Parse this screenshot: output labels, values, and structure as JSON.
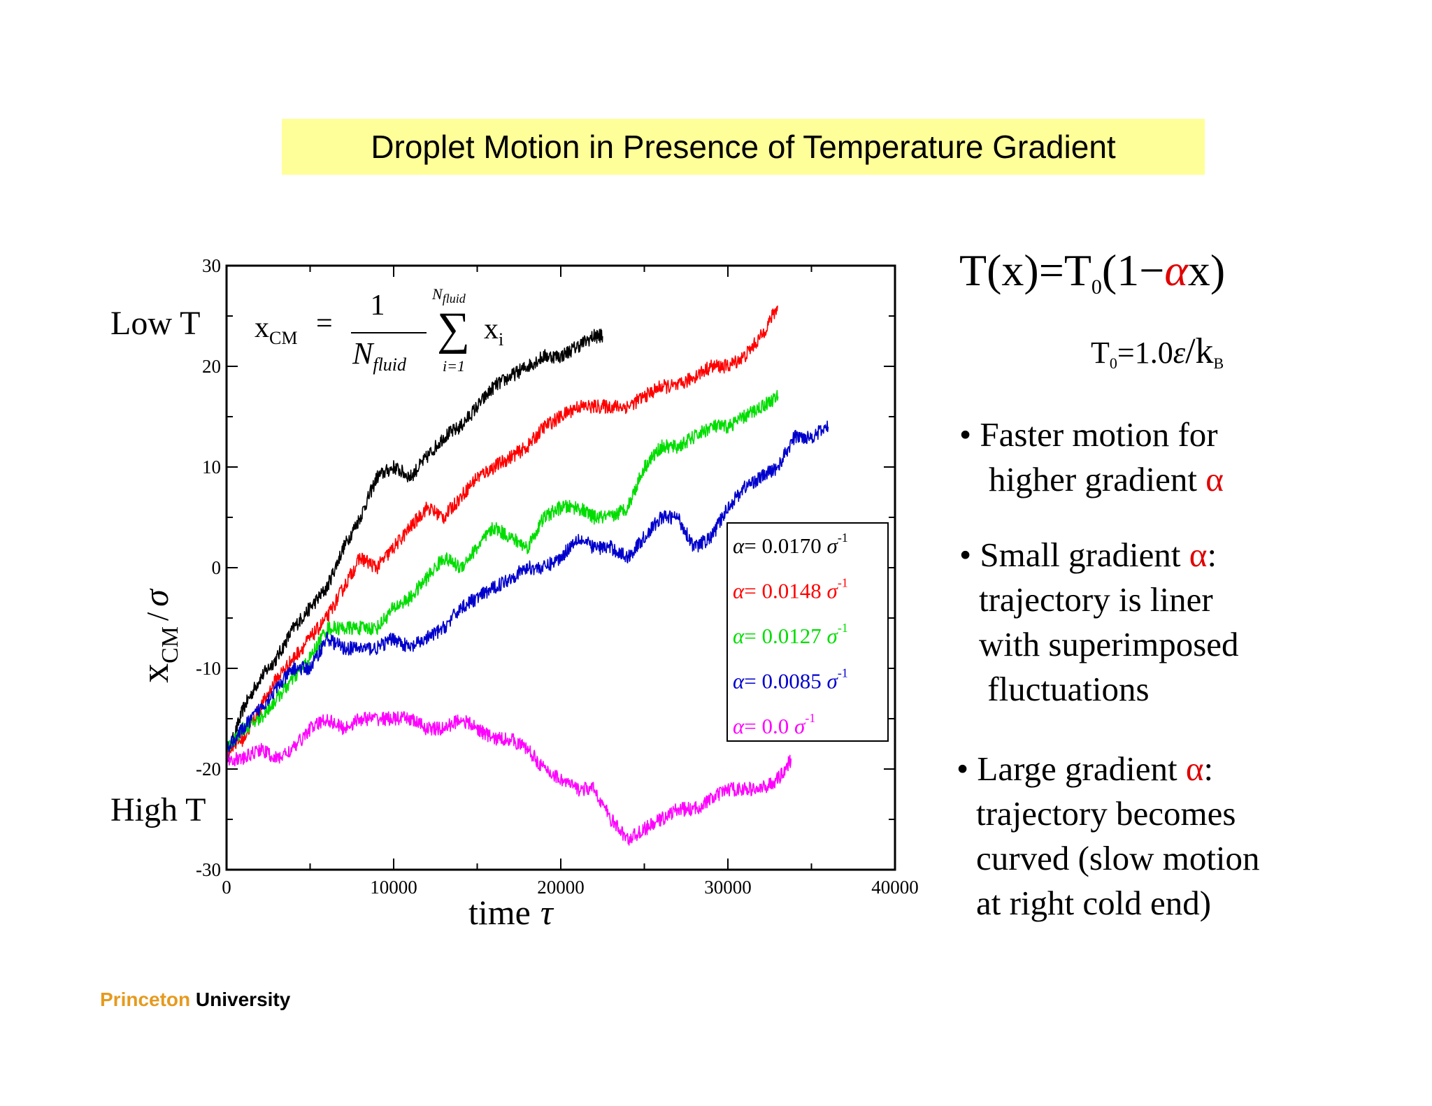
{
  "title": "Droplet Motion in Presence of Temperature Gradient",
  "formula": {
    "lhs": "T(x)=T",
    "sub": "0",
    "open": "(1−",
    "alpha": "α",
    "close": "x)",
    "t0_lhs": "T",
    "t0_sub": "0",
    "t0_mid": "=1.0",
    "t0_eps": "ε",
    "t0_slash": "/k",
    "t0_b": "B"
  },
  "bullets": [
    {
      "lines": [
        [
          "• Faster motion for"
        ],
        [
          "higher gradient ",
          "α"
        ]
      ]
    },
    {
      "lines": [
        [
          "• Small gradient ",
          "α",
          ":"
        ],
        [
          "trajectory is liner"
        ],
        [
          "with superimposed"
        ],
        [
          " fluctuations"
        ]
      ]
    },
    {
      "lines": [
        [
          "• Large gradient ",
          "α",
          ":"
        ],
        [
          "trajectory becomes"
        ],
        [
          "curved (slow motion"
        ],
        [
          "at right cold end)"
        ]
      ]
    }
  ],
  "footer": {
    "part1": "Princeton",
    "part2": " University"
  },
  "colors": {
    "title_bg": "#ffff99",
    "accent_red": "#e00000",
    "princeton_orange": "#e69a1e"
  },
  "chart_data": {
    "type": "line",
    "xlabel": "time",
    "xlabel_symbol": "τ",
    "ylabel": "x",
    "ylabel_sub": "CM",
    "ylabel_div": "/",
    "ylabel_sigma": "σ",
    "xlim": [
      0,
      40000
    ],
    "ylim": [
      -30,
      30
    ],
    "xticks": [
      0,
      10000,
      20000,
      30000,
      40000
    ],
    "yticks": [
      -30,
      -20,
      -10,
      0,
      10,
      20,
      30
    ],
    "annotations": {
      "low": "Low T",
      "high": "High T"
    },
    "equation": {
      "lhs": "x",
      "lhs_sub": "CM",
      "eq": "=",
      "num": "1",
      "den": "N",
      "den_sub": "fluid",
      "sum": "∑",
      "sum_top": "N",
      "sum_top_sub": "fluid",
      "sum_bottom": "i=1",
      "term": "x",
      "term_sub": "i"
    },
    "legend_location": "center-right",
    "series": [
      {
        "name": "α= 0.0170 σ",
        "label_alpha": "α",
        "label_value": "= 0.0170 ",
        "label_sigma": "σ",
        "label_exp": "-1",
        "color": "#000000",
        "points": [
          [
            0,
            -19
          ],
          [
            1000,
            -14
          ],
          [
            2000,
            -11
          ],
          [
            3000,
            -9
          ],
          [
            4000,
            -6
          ],
          [
            5000,
            -4
          ],
          [
            6000,
            -2
          ],
          [
            7000,
            2
          ],
          [
            8000,
            5
          ],
          [
            9000,
            9
          ],
          [
            10000,
            10
          ],
          [
            11000,
            9
          ],
          [
            12000,
            11
          ],
          [
            13000,
            13
          ],
          [
            14000,
            14
          ],
          [
            15000,
            16
          ],
          [
            16000,
            18
          ],
          [
            17000,
            19
          ],
          [
            18000,
            20
          ],
          [
            19000,
            21
          ],
          [
            20000,
            21
          ],
          [
            21000,
            22
          ],
          [
            22000,
            23
          ],
          [
            22500,
            23
          ]
        ]
      },
      {
        "name": "α= 0.0148 σ",
        "label_alpha": "α",
        "label_value": "= 0.0148 ",
        "label_sigma": "σ",
        "label_exp": "-1",
        "color": "#ff0000",
        "points": [
          [
            0,
            -18
          ],
          [
            1000,
            -17
          ],
          [
            2000,
            -14
          ],
          [
            3000,
            -11
          ],
          [
            4000,
            -9
          ],
          [
            5000,
            -7
          ],
          [
            6000,
            -5
          ],
          [
            7000,
            -2
          ],
          [
            8000,
            1
          ],
          [
            9000,
            0
          ],
          [
            10000,
            2
          ],
          [
            11000,
            4
          ],
          [
            12000,
            6
          ],
          [
            13000,
            5
          ],
          [
            14000,
            7
          ],
          [
            15000,
            9
          ],
          [
            16000,
            10
          ],
          [
            17000,
            11
          ],
          [
            18000,
            12
          ],
          [
            19000,
            14
          ],
          [
            20000,
            15
          ],
          [
            21000,
            16
          ],
          [
            22000,
            16
          ],
          [
            23000,
            16
          ],
          [
            24000,
            16
          ],
          [
            25000,
            17
          ],
          [
            26000,
            18
          ],
          [
            27000,
            18
          ],
          [
            28000,
            19
          ],
          [
            29000,
            20
          ],
          [
            30000,
            20
          ],
          [
            31000,
            21
          ],
          [
            32000,
            23
          ],
          [
            33000,
            26
          ]
        ]
      },
      {
        "name": "α= 0.0127 σ",
        "label_alpha": "α",
        "label_value": "= 0.0127 ",
        "label_sigma": "σ",
        "label_exp": "-1",
        "color": "#00dd00",
        "points": [
          [
            0,
            -18
          ],
          [
            1000,
            -16
          ],
          [
            2000,
            -15
          ],
          [
            3000,
            -13
          ],
          [
            4000,
            -11
          ],
          [
            5000,
            -9
          ],
          [
            6000,
            -6
          ],
          [
            7000,
            -6
          ],
          [
            8000,
            -6
          ],
          [
            9000,
            -6
          ],
          [
            10000,
            -4
          ],
          [
            11000,
            -3
          ],
          [
            12000,
            -1
          ],
          [
            13000,
            1
          ],
          [
            14000,
            0
          ],
          [
            15000,
            2
          ],
          [
            16000,
            4
          ],
          [
            17000,
            3
          ],
          [
            18000,
            2
          ],
          [
            19000,
            5
          ],
          [
            20000,
            6
          ],
          [
            21000,
            6
          ],
          [
            22000,
            5
          ],
          [
            23000,
            5
          ],
          [
            24000,
            6
          ],
          [
            25000,
            10
          ],
          [
            26000,
            12
          ],
          [
            27000,
            12
          ],
          [
            28000,
            13
          ],
          [
            29000,
            14
          ],
          [
            30000,
            14
          ],
          [
            31000,
            15
          ],
          [
            32000,
            16
          ],
          [
            33000,
            17
          ]
        ]
      },
      {
        "name": "α= 0.0085 σ",
        "label_alpha": "α",
        "label_value": "= 0.0085 ",
        "label_sigma": "σ",
        "label_exp": "-1",
        "color": "#0000cc",
        "points": [
          [
            0,
            -18
          ],
          [
            1000,
            -16
          ],
          [
            2000,
            -14
          ],
          [
            3000,
            -12
          ],
          [
            4000,
            -10
          ],
          [
            5000,
            -10
          ],
          [
            6000,
            -7
          ],
          [
            7000,
            -8
          ],
          [
            8000,
            -8
          ],
          [
            9000,
            -8
          ],
          [
            10000,
            -7
          ],
          [
            11000,
            -8
          ],
          [
            12000,
            -7
          ],
          [
            13000,
            -6
          ],
          [
            14000,
            -4
          ],
          [
            15000,
            -3
          ],
          [
            16000,
            -2
          ],
          [
            17000,
            -1
          ],
          [
            18000,
            0
          ],
          [
            19000,
            0
          ],
          [
            20000,
            1
          ],
          [
            21000,
            3
          ],
          [
            22000,
            2
          ],
          [
            23000,
            2
          ],
          [
            24000,
            1
          ],
          [
            25000,
            3
          ],
          [
            26000,
            5
          ],
          [
            27000,
            5
          ],
          [
            28000,
            2
          ],
          [
            29000,
            3
          ],
          [
            30000,
            6
          ],
          [
            31000,
            8
          ],
          [
            32000,
            9
          ],
          [
            33000,
            10
          ],
          [
            34000,
            13
          ],
          [
            35000,
            13
          ],
          [
            36000,
            14
          ]
        ]
      },
      {
        "name": "α= 0.0 σ",
        "label_alpha": "α",
        "label_value": "= 0.0 ",
        "label_sigma": "σ",
        "label_exp": "-1",
        "color": "#ff00ff",
        "points": [
          [
            0,
            -19
          ],
          [
            1000,
            -19
          ],
          [
            2000,
            -18
          ],
          [
            3000,
            -19
          ],
          [
            4000,
            -18
          ],
          [
            5000,
            -16
          ],
          [
            6000,
            -15
          ],
          [
            7000,
            -16
          ],
          [
            8000,
            -15
          ],
          [
            9000,
            -15
          ],
          [
            10000,
            -15
          ],
          [
            11000,
            -15
          ],
          [
            12000,
            -16
          ],
          [
            13000,
            -16
          ],
          [
            14000,
            -15
          ],
          [
            15000,
            -16
          ],
          [
            16000,
            -17
          ],
          [
            17000,
            -17
          ],
          [
            18000,
            -18
          ],
          [
            19000,
            -20
          ],
          [
            20000,
            -21
          ],
          [
            21000,
            -22
          ],
          [
            22000,
            -22
          ],
          [
            23000,
            -25
          ],
          [
            24000,
            -27
          ],
          [
            25000,
            -26
          ],
          [
            26000,
            -25
          ],
          [
            27000,
            -24
          ],
          [
            28000,
            -24
          ],
          [
            29000,
            -23
          ],
          [
            30000,
            -22
          ],
          [
            31000,
            -22
          ],
          [
            32000,
            -22
          ],
          [
            33000,
            -21
          ],
          [
            33800,
            -19
          ]
        ]
      }
    ]
  }
}
